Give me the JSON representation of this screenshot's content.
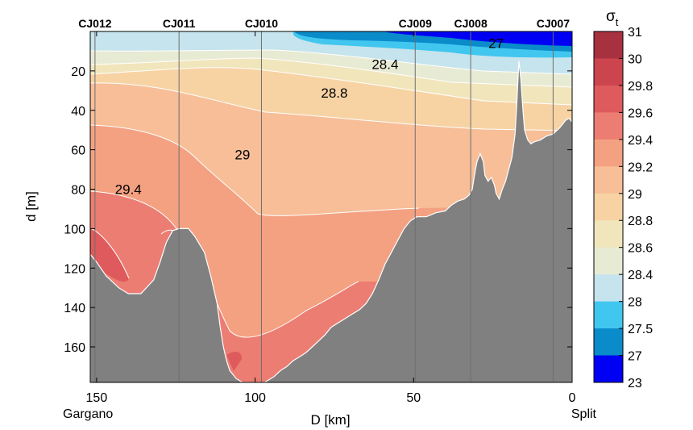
{
  "chart_data": {
    "type": "contour-section",
    "title": "",
    "xlabel": "D [km]",
    "ylabel": "d [m]",
    "x_reversed": true,
    "y_reversed": true,
    "xlim": [
      152,
      0
    ],
    "ylim": [
      0,
      178
    ],
    "x_ticks": [
      150,
      100,
      50,
      0
    ],
    "y_ticks": [
      20,
      40,
      60,
      80,
      100,
      120,
      140,
      160
    ],
    "x_end_labels": {
      "left": "Gargano",
      "right": "Split"
    },
    "stations": [
      {
        "name": "CJ012",
        "x": 150.5
      },
      {
        "name": "CJ011",
        "x": 124
      },
      {
        "name": "CJ010",
        "x": 98
      },
      {
        "name": "CJ009",
        "x": 49.5
      },
      {
        "name": "CJ008",
        "x": 32
      },
      {
        "name": "CJ007",
        "x": 6
      }
    ],
    "contour_labels": [
      {
        "text": "27",
        "x": 24,
        "y": 12
      },
      {
        "text": "28.4",
        "x": 59,
        "y": 33
      },
      {
        "text": "28.8",
        "x": 75,
        "y": 62
      },
      {
        "text": "29",
        "x": 104,
        "y": 125
      },
      {
        "text": "29.4",
        "x": 140,
        "y": 160
      }
    ],
    "colorbar": {
      "title_main": "σ",
      "title_sub": "t",
      "levels": [
        "31",
        "30",
        "29.8",
        "29.6",
        "29.4",
        "29.2",
        "29",
        "28.8",
        "28.6",
        "28.4",
        "28",
        "27.5",
        "27",
        "23"
      ],
      "colors": [
        "#a8313f",
        "#cc444e",
        "#de5a5c",
        "#ec7d72",
        "#f4a182",
        "#f7be98",
        "#f7d3a4",
        "#f1e5bb",
        "#e8ebd4",
        "#c6e4ed",
        "#41c7ef",
        "#0a8bca",
        "#0000f5"
      ]
    },
    "bathymetry": [
      [
        152,
        113
      ],
      [
        150,
        117
      ],
      [
        147,
        124
      ],
      [
        143,
        130
      ],
      [
        140,
        133
      ],
      [
        136,
        133
      ],
      [
        132,
        126
      ],
      [
        130,
        117
      ],
      [
        128,
        107
      ],
      [
        126,
        101
      ],
      [
        124,
        100
      ],
      [
        121,
        100
      ],
      [
        119,
        104
      ],
      [
        116,
        112
      ],
      [
        114,
        124
      ],
      [
        112,
        138
      ],
      [
        111,
        150
      ],
      [
        110,
        160
      ],
      [
        109,
        167
      ],
      [
        108,
        172
      ],
      [
        106,
        176
      ],
      [
        104,
        178
      ],
      [
        100,
        178
      ],
      [
        97,
        178
      ],
      [
        94,
        175
      ],
      [
        92,
        172
      ],
      [
        90,
        170
      ],
      [
        88,
        167
      ],
      [
        86,
        165
      ],
      [
        84,
        163
      ],
      [
        82,
        160
      ],
      [
        80,
        157
      ],
      [
        78,
        154
      ],
      [
        76,
        150
      ],
      [
        73,
        147
      ],
      [
        70,
        144
      ],
      [
        67,
        141
      ],
      [
        65,
        138
      ],
      [
        63,
        133
      ],
      [
        61,
        126
      ],
      [
        59,
        118
      ],
      [
        57,
        112
      ],
      [
        55,
        106
      ],
      [
        53,
        100
      ],
      [
        51,
        96
      ],
      [
        49,
        94
      ],
      [
        46,
        94
      ],
      [
        43,
        92
      ],
      [
        40,
        91
      ],
      [
        38,
        88
      ],
      [
        36,
        86
      ],
      [
        34,
        85
      ],
      [
        32.5,
        83
      ],
      [
        31.5,
        80
      ],
      [
        31,
        75
      ],
      [
        30.5,
        70
      ],
      [
        30,
        66
      ],
      [
        29,
        62
      ],
      [
        28,
        66
      ],
      [
        27.5,
        73
      ],
      [
        26.5,
        76
      ],
      [
        25.5,
        74
      ],
      [
        24.5,
        78
      ],
      [
        24,
        82
      ],
      [
        23,
        85
      ],
      [
        22,
        80
      ],
      [
        21,
        76
      ],
      [
        20,
        70
      ],
      [
        19,
        64
      ],
      [
        18,
        52
      ],
      [
        17.5,
        38
      ],
      [
        16.8,
        15
      ],
      [
        16.2,
        24
      ],
      [
        15.5,
        40
      ],
      [
        15,
        50
      ],
      [
        14,
        55
      ],
      [
        13,
        57
      ],
      [
        12,
        56
      ],
      [
        10,
        55
      ],
      [
        8,
        53
      ],
      [
        6,
        52
      ],
      [
        4,
        49
      ],
      [
        2,
        45
      ],
      [
        1,
        44
      ],
      [
        0,
        46
      ]
    ]
  }
}
